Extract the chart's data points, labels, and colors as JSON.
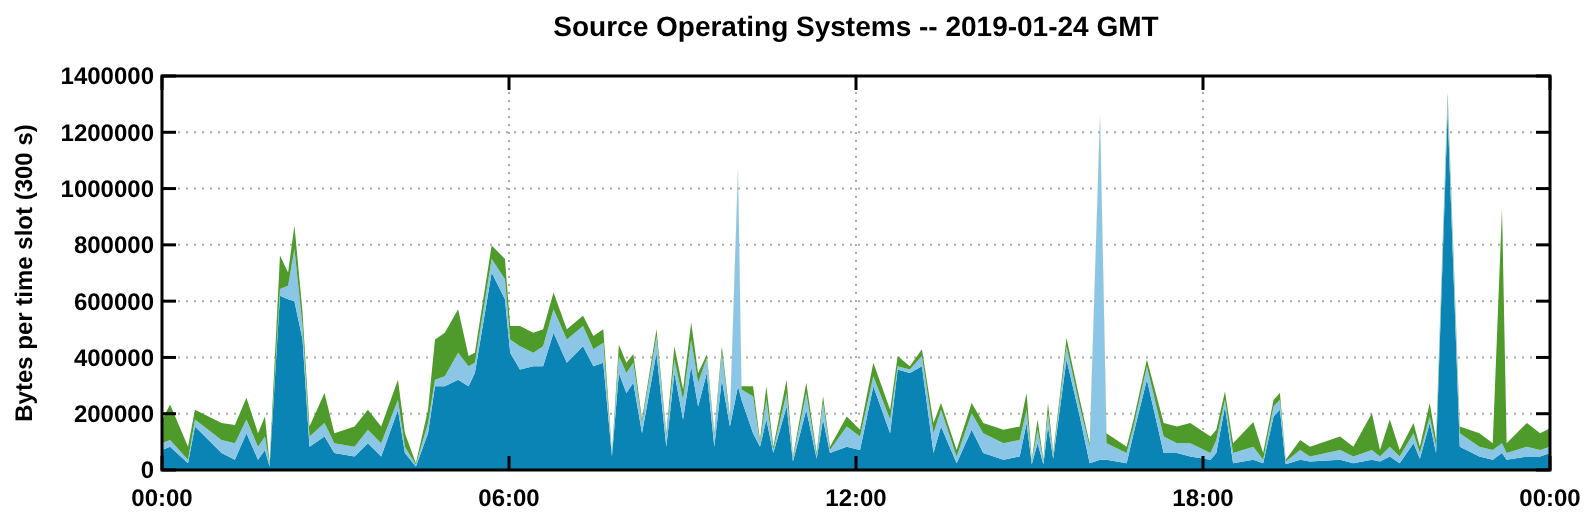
{
  "chart_data": {
    "type": "area",
    "title": "Source Operating Systems -- 2019-01-24 GMT",
    "ylabel": "Bytes per time slot (300 s)",
    "stacked": true,
    "grid": true,
    "x": [
      0,
      0.14,
      0.45,
      0.57,
      1.03,
      1.26,
      1.46,
      1.66,
      1.78,
      1.86,
      2.04,
      2.18,
      2.29,
      2.43,
      2.55,
      2.81,
      2.98,
      3.33,
      3.56,
      3.79,
      4.08,
      4.2,
      4.39,
      4.6,
      4.72,
      4.89,
      5.12,
      5.3,
      5.41,
      5.7,
      5.93,
      6.02,
      6.19,
      6.42,
      6.59,
      6.77,
      7.0,
      7.28,
      7.46,
      7.63,
      7.78,
      7.9,
      8.03,
      8.15,
      8.3,
      8.55,
      8.72,
      8.86,
      9.01,
      9.15,
      9.27,
      9.42,
      9.55,
      9.68,
      9.82,
      9.96,
      10.02,
      10.22,
      10.34,
      10.45,
      10.57,
      10.8,
      10.91,
      11.14,
      11.32,
      11.43,
      11.55,
      11.84,
      12.07,
      12.3,
      12.59,
      12.72,
      12.93,
      13.14,
      13.34,
      13.47,
      13.74,
      14.0,
      14.2,
      14.55,
      14.83,
      14.95,
      15.04,
      15.14,
      15.24,
      15.32,
      15.41,
      15.64,
      15.87,
      16.04,
      16.22,
      16.33,
      16.68,
      16.8,
      17.03,
      17.32,
      17.55,
      17.78,
      18.13,
      18.23,
      18.38,
      18.52,
      18.87,
      19.04,
      19.22,
      19.33,
      19.43,
      19.68,
      19.85,
      20.37,
      20.6,
      20.92,
      21.06,
      21.23,
      21.4,
      21.64,
      21.75,
      21.92,
      22.03,
      22.23,
      22.44,
      22.78,
      23.01,
      23.17,
      23.25,
      23.6,
      23.83,
      24
    ],
    "xlim": [
      0,
      24
    ],
    "xticks": [
      {
        "value": 0,
        "label": "00:00"
      },
      {
        "value": 6,
        "label": "06:00"
      },
      {
        "value": 12,
        "label": "12:00"
      },
      {
        "value": 18,
        "label": "18:00"
      },
      {
        "value": 24,
        "label": "00:00"
      }
    ],
    "ylim": [
      0,
      1400000
    ],
    "yticks": [
      0,
      200000,
      400000,
      600000,
      800000,
      1000000,
      1200000,
      1400000
    ],
    "series": [
      {
        "color": "#0a84b4",
        "values": [
          71000,
          83000,
          24000,
          155000,
          60000,
          36000,
          131000,
          36000,
          71000,
          12000,
          619000,
          607000,
          600000,
          464000,
          83000,
          119000,
          60000,
          48000,
          95000,
          48000,
          214000,
          60000,
          12000,
          131000,
          298000,
          298000,
          321000,
          298000,
          345000,
          702000,
          607000,
          417000,
          357000,
          369000,
          369000,
          488000,
          381000,
          440000,
          369000,
          381000,
          48000,
          345000,
          274000,
          310000,
          131000,
          417000,
          83000,
          345000,
          179000,
          369000,
          226000,
          345000,
          83000,
          321000,
          155000,
          298000,
          250000,
          131000,
          83000,
          179000,
          60000,
          226000,
          30000,
          214000,
          40000,
          179000,
          60000,
          83000,
          71000,
          298000,
          131000,
          357000,
          345000,
          369000,
          60000,
          155000,
          24000,
          143000,
          60000,
          36000,
          48000,
          167000,
          20000,
          95000,
          20000,
          155000,
          40000,
          393000,
          190000,
          24000,
          36000,
          36000,
          24000,
          131000,
          321000,
          60000,
          60000,
          48000,
          36000,
          60000,
          226000,
          24000,
          36000,
          24000,
          190000,
          214000,
          20000,
          36000,
          30000,
          36000,
          24000,
          36000,
          30000,
          48000,
          24000,
          95000,
          40000,
          167000,
          60000,
          1274000,
          83000,
          48000,
          36000,
          60000,
          36000,
          48000,
          48000,
          60000
        ]
      },
      {
        "color": "#8cc6e6",
        "values": [
          24000,
          24000,
          12000,
          24000,
          47000,
          59000,
          48000,
          47000,
          48000,
          7000,
          24000,
          48000,
          186000,
          48000,
          36000,
          48000,
          35000,
          35000,
          48000,
          47000,
          36000,
          23000,
          7000,
          36000,
          23000,
          35000,
          96000,
          71000,
          36000,
          48000,
          72000,
          47000,
          83000,
          48000,
          71000,
          83000,
          83000,
          72000,
          60000,
          71000,
          7000,
          60000,
          71000,
          71000,
          36000,
          59000,
          36000,
          48000,
          71000,
          95000,
          84000,
          53000,
          36000,
          96000,
          24000,
          762000,
          36000,
          131000,
          12000,
          71000,
          11000,
          48000,
          10000,
          60000,
          10000,
          59000,
          11000,
          72000,
          48000,
          35000,
          48000,
          12000,
          12000,
          36000,
          71000,
          59000,
          24000,
          59000,
          71000,
          59000,
          59000,
          47000,
          10000,
          48000,
          10000,
          47000,
          10000,
          47000,
          36000,
          59000,
          1214000,
          59000,
          36000,
          24000,
          48000,
          59000,
          35000,
          47000,
          24000,
          47000,
          24000,
          36000,
          47000,
          12000,
          36000,
          36000,
          10000,
          35000,
          18000,
          35000,
          24000,
          35000,
          18000,
          35000,
          24000,
          36000,
          20000,
          23000,
          23000,
          47000,
          48000,
          35000,
          35000,
          35000,
          24000,
          35000,
          23000,
          23000
        ]
      },
      {
        "color": "#4e9a2a",
        "values": [
          83000,
          126000,
          47000,
          35000,
          60000,
          65000,
          78000,
          48000,
          71000,
          5000,
          119000,
          47000,
          83000,
          48000,
          36000,
          107000,
          36000,
          72000,
          71000,
          60000,
          71000,
          48000,
          5000,
          47000,
          143000,
          155000,
          154000,
          36000,
          36000,
          48000,
          71000,
          48000,
          72000,
          71000,
          60000,
          60000,
          36000,
          36000,
          47000,
          48000,
          5000,
          40000,
          36000,
          31000,
          12000,
          24000,
          12000,
          47000,
          36000,
          60000,
          35000,
          12000,
          12000,
          23000,
          11000,
          11000,
          12000,
          36000,
          12000,
          48000,
          12000,
          47000,
          8000,
          36000,
          10000,
          24000,
          12000,
          35000,
          24000,
          48000,
          35000,
          36000,
          12000,
          24000,
          36000,
          24000,
          23000,
          36000,
          36000,
          48000,
          48000,
          60000,
          6000,
          36000,
          6000,
          36000,
          10000,
          29000,
          24000,
          12000,
          12000,
          36000,
          23000,
          24000,
          24000,
          48000,
          60000,
          72000,
          59000,
          36000,
          29000,
          35000,
          88000,
          24000,
          24000,
          24000,
          6000,
          36000,
          35000,
          48000,
          35000,
          131000,
          23000,
          96000,
          23000,
          36000,
          23000,
          48000,
          24000,
          19000,
          24000,
          48000,
          24000,
          834000,
          35000,
          84000,
          60000,
          65000
        ]
      }
    ]
  }
}
